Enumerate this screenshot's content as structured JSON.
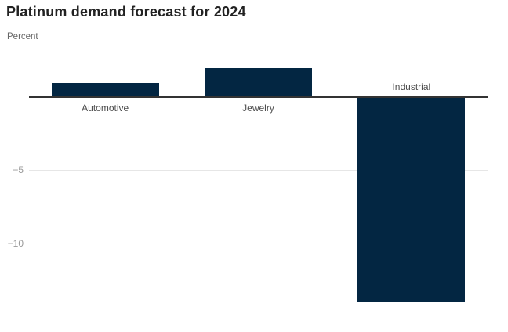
{
  "header": {
    "title": "Platinum demand forecast for 2024",
    "subtitle": "Percent"
  },
  "colors": {
    "bar": "#032642",
    "zero_line": "#333333",
    "gridline": "#e6e6e6",
    "tick_label": "#999999",
    "category_label": "#4d4d4d",
    "title": "#222222",
    "subtitle": "#666666"
  },
  "chart_data": {
    "type": "bar",
    "title": "Platinum demand forecast for 2024",
    "subtitle": "Percent",
    "ylabel": "Percent",
    "categories": [
      "Automotive",
      "Jewelry",
      "Industrial"
    ],
    "values": [
      1,
      2,
      -14
    ],
    "ylim": [
      -14.2,
      2.9
    ],
    "yticks": [
      {
        "value": -5,
        "label": "−5"
      },
      {
        "value": -10,
        "label": "−10"
      }
    ],
    "zero_line_value": 0,
    "grid": "horizontal",
    "legend": "none",
    "bar_color": "#032642"
  }
}
